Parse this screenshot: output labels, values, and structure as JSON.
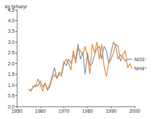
{
  "chart_data": {
    "type": "line",
    "ylabel": "kg N/ha/yr",
    "x": [
      1955,
      1956,
      1957,
      1958,
      1959,
      1960,
      1961,
      1962,
      1963,
      1964,
      1965,
      1966,
      1967,
      1968,
      1969,
      1970,
      1971,
      1972,
      1973,
      1974,
      1975,
      1976,
      1977,
      1978,
      1979,
      1980,
      1981,
      1982,
      1983,
      1984,
      1985,
      1986,
      1987,
      1988,
      1989,
      1990,
      1991,
      1992,
      1993,
      1994,
      1995,
      1996,
      1997,
      1998,
      1999
    ],
    "series": [
      {
        "name": "NO3⁻",
        "color": "#7f8fa6",
        "values": [
          0.8,
          0.75,
          0.9,
          1.0,
          0.95,
          1.2,
          0.9,
          1.1,
          0.8,
          1.0,
          1.4,
          1.8,
          1.3,
          1.6,
          1.5,
          2.1,
          1.9,
          2.2,
          2.0,
          2.4,
          2.2,
          2.9,
          2.2,
          2.5,
          1.5,
          2.5,
          1.9,
          2.0,
          2.4,
          2.7,
          2.8,
          2.2,
          2.8,
          2.6,
          2.0,
          2.5,
          3.0,
          2.8,
          2.2,
          2.4,
          2.3,
          2.1,
          2.2,
          2.2,
          2.2
        ]
      },
      {
        "name": "NH4⁺",
        "color": "#e8872a",
        "values": [
          0.8,
          0.7,
          0.95,
          0.9,
          1.3,
          1.0,
          0.7,
          1.1,
          0.75,
          0.9,
          1.3,
          1.5,
          1.3,
          1.5,
          1.4,
          2.0,
          2.2,
          2.0,
          1.7,
          2.6,
          2.0,
          2.7,
          2.6,
          2.4,
          2.8,
          2.3,
          1.5,
          2.9,
          2.5,
          3.0,
          2.2,
          2.9,
          1.9,
          1.4,
          2.0,
          2.2,
          2.5,
          2.9,
          2.8,
          2.1,
          2.4,
          2.6,
          1.8,
          2.0,
          1.75
        ]
      }
    ],
    "xlim": [
      1950,
      2000
    ],
    "xticks": [
      1950,
      1960,
      1970,
      1980,
      1990,
      2000
    ],
    "ylim": [
      0,
      4.5
    ],
    "yticks": [
      {
        "value": 0,
        "label": "0.0"
      },
      {
        "value": 0.5,
        "label": "0.5"
      },
      {
        "value": 1,
        "label": "1.0"
      },
      {
        "value": 1.5,
        "label": "1.5"
      },
      {
        "value": 2,
        "label": "2.0"
      },
      {
        "value": 2.5,
        "label": "2.5"
      },
      {
        "value": 3,
        "label": "3.0"
      },
      {
        "value": 3.5,
        "label": "3.5"
      },
      {
        "value": 4,
        "label": "4.0"
      },
      {
        "value": 4.5,
        "label": "4.5"
      }
    ],
    "grid": false
  }
}
